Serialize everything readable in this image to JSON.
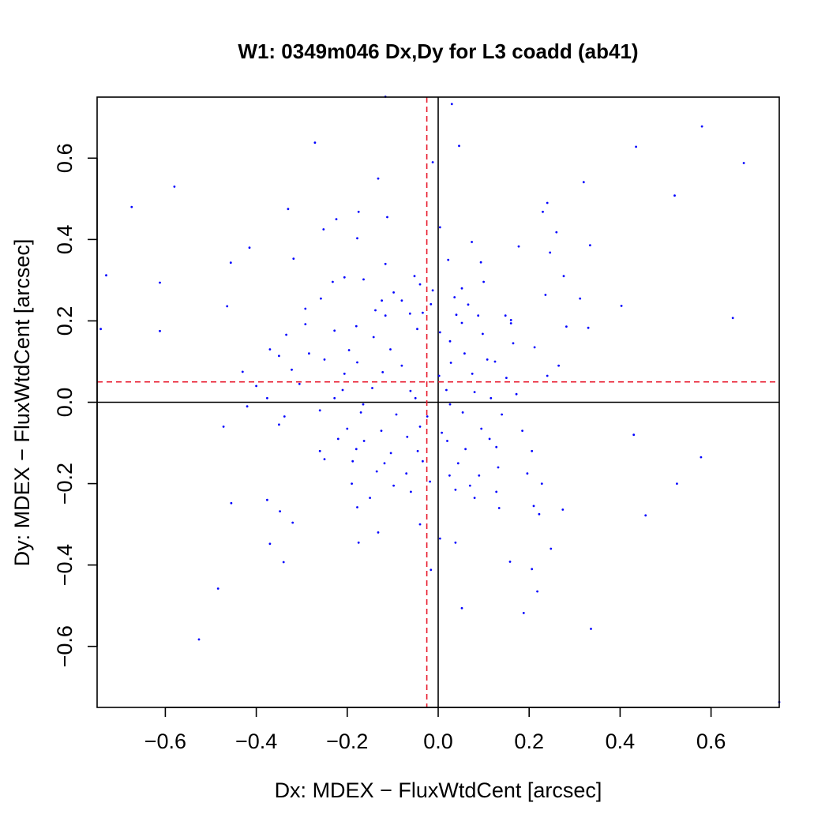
{
  "chart_data": {
    "type": "scatter",
    "title": "W1: 0349m046 Dx,Dy for L3 coadd (ab41)",
    "xlabel": "Dx: MDEX − FluxWtdCent [arcsec]",
    "ylabel": "Dy: MDEX − FluxWtdCent [arcsec]",
    "xlim": [
      -0.75,
      0.75
    ],
    "ylim": [
      -0.75,
      0.75
    ],
    "xticks": [
      -0.6,
      -0.4,
      -0.2,
      0.0,
      0.2,
      0.4,
      0.6
    ],
    "xtick_labels": [
      "−0.6",
      "−0.4",
      "−0.2",
      "0.0",
      "0.2",
      "0.4",
      "0.6"
    ],
    "yticks": [
      -0.6,
      -0.4,
      -0.2,
      0.0,
      0.2,
      0.4,
      0.6
    ],
    "ytick_labels": [
      "−0.6",
      "−0.4",
      "−0.2",
      "0.0",
      "0.2",
      "0.4",
      "0.6"
    ],
    "grid": false,
    "reference_lines": [
      {
        "orientation": "vertical",
        "value": 0.0,
        "color": "#000000",
        "style": "solid"
      },
      {
        "orientation": "horizontal",
        "value": 0.0,
        "color": "#000000",
        "style": "solid"
      },
      {
        "orientation": "vertical",
        "value": -0.025,
        "color": "#e8192c",
        "style": "dashed"
      },
      {
        "orientation": "horizontal",
        "value": 0.05,
        "color": "#e8192c",
        "style": "dashed"
      }
    ],
    "point_color": "#0000ff",
    "points": [
      [
        -0.116,
        0.751
      ],
      [
        0.03,
        0.733
      ],
      [
        0.58,
        0.678
      ],
      [
        -0.271,
        0.638
      ],
      [
        0.046,
        0.63
      ],
      [
        0.435,
        0.628
      ],
      [
        0.672,
        0.588
      ],
      [
        -0.012,
        0.59
      ],
      [
        -0.58,
        0.53
      ],
      [
        0.32,
        0.541
      ],
      [
        -0.132,
        0.55
      ],
      [
        0.52,
        0.508
      ],
      [
        -0.674,
        0.48
      ],
      [
        -0.33,
        0.475
      ],
      [
        -0.175,
        0.468
      ],
      [
        0.23,
        0.468
      ],
      [
        0.24,
        0.49
      ],
      [
        -0.112,
        0.455
      ],
      [
        -0.224,
        0.45
      ],
      [
        -0.252,
        0.425
      ],
      [
        0.26,
        0.418
      ],
      [
        0.004,
        0.43
      ],
      [
        -0.178,
        0.403
      ],
      [
        0.074,
        0.394
      ],
      [
        0.177,
        0.383
      ],
      [
        0.334,
        0.386
      ],
      [
        -0.415,
        0.38
      ],
      [
        0.246,
        0.368
      ],
      [
        -0.318,
        0.353
      ],
      [
        -0.456,
        0.343
      ],
      [
        0.022,
        0.35
      ],
      [
        0.094,
        0.344
      ],
      [
        -0.73,
        0.312
      ],
      [
        -0.116,
        0.34
      ],
      [
        -0.052,
        0.31
      ],
      [
        -0.612,
        0.294
      ],
      [
        -0.206,
        0.307
      ],
      [
        -0.164,
        0.302
      ],
      [
        -0.232,
        0.296
      ],
      [
        0.276,
        0.31
      ],
      [
        -0.04,
        0.29
      ],
      [
        -0.012,
        0.275
      ],
      [
        0.052,
        0.28
      ],
      [
        0.1,
        0.296
      ],
      [
        -0.098,
        0.27
      ],
      [
        0.036,
        0.258
      ],
      [
        0.236,
        0.264
      ],
      [
        0.312,
        0.255
      ],
      [
        -0.258,
        0.255
      ],
      [
        -0.08,
        0.25
      ],
      [
        -0.016,
        0.241
      ],
      [
        0.066,
        0.24
      ],
      [
        -0.124,
        0.25
      ],
      [
        -0.464,
        0.236
      ],
      [
        -0.292,
        0.23
      ],
      [
        0.403,
        0.237
      ],
      [
        -0.138,
        0.226
      ],
      [
        -0.116,
        0.213
      ],
      [
        -0.062,
        0.218
      ],
      [
        -0.034,
        0.22
      ],
      [
        0.04,
        0.215
      ],
      [
        0.088,
        0.213
      ],
      [
        0.148,
        0.213
      ],
      [
        -0.742,
        0.18
      ],
      [
        0.648,
        0.207
      ],
      [
        -0.292,
        0.192
      ],
      [
        -0.18,
        0.187
      ],
      [
        0.052,
        0.195
      ],
      [
        0.16,
        0.202
      ],
      [
        0.282,
        0.186
      ],
      [
        0.33,
        0.183
      ],
      [
        -0.612,
        0.175
      ],
      [
        0.16,
        0.194
      ],
      [
        -0.046,
        0.18
      ],
      [
        -0.334,
        0.166
      ],
      [
        -0.228,
        0.176
      ],
      [
        0.004,
        0.172
      ],
      [
        0.098,
        0.168
      ],
      [
        -0.142,
        0.16
      ],
      [
        0.026,
        0.15
      ],
      [
        0.165,
        0.145
      ],
      [
        0.212,
        0.135
      ],
      [
        -0.37,
        0.13
      ],
      [
        -0.284,
        0.12
      ],
      [
        -0.196,
        0.128
      ],
      [
        -0.105,
        0.13
      ],
      [
        0.058,
        0.12
      ],
      [
        -0.35,
        0.114
      ],
      [
        -0.25,
        0.105
      ],
      [
        -0.178,
        0.098
      ],
      [
        -0.08,
        0.09
      ],
      [
        0.028,
        0.097
      ],
      [
        0.108,
        0.105
      ],
      [
        0.125,
        0.1
      ],
      [
        0.265,
        0.09
      ],
      [
        -0.43,
        0.075
      ],
      [
        -0.322,
        0.08
      ],
      [
        -0.206,
        0.07
      ],
      [
        -0.122,
        0.074
      ],
      [
        0.002,
        0.065
      ],
      [
        0.075,
        0.07
      ],
      [
        0.15,
        0.06
      ],
      [
        0.24,
        0.065
      ],
      [
        -0.4,
        0.04
      ],
      [
        -0.305,
        0.045
      ],
      [
        -0.21,
        0.03
      ],
      [
        -0.145,
        0.035
      ],
      [
        -0.061,
        0.028
      ],
      [
        0.018,
        0.03
      ],
      [
        0.08,
        0.025
      ],
      [
        0.172,
        0.02
      ],
      [
        -0.42,
        -0.01
      ],
      [
        -0.376,
        0.01
      ],
      [
        -0.228,
        0.01
      ],
      [
        -0.165,
        -0.005
      ],
      [
        -0.05,
        0.01
      ],
      [
        0.026,
        -0.005
      ],
      [
        0.116,
        0.01
      ],
      [
        -0.338,
        -0.035
      ],
      [
        -0.26,
        -0.02
      ],
      [
        -0.17,
        -0.025
      ],
      [
        -0.092,
        -0.03
      ],
      [
        -0.024,
        -0.035
      ],
      [
        0.054,
        -0.025
      ],
      [
        0.14,
        -0.03
      ],
      [
        -0.472,
        -0.06
      ],
      [
        -0.35,
        -0.055
      ],
      [
        -0.2,
        -0.065
      ],
      [
        -0.125,
        -0.07
      ],
      [
        -0.04,
        -0.06
      ],
      [
        0.008,
        -0.075
      ],
      [
        0.095,
        -0.065
      ],
      [
        0.185,
        -0.07
      ],
      [
        -0.22,
        -0.09
      ],
      [
        -0.163,
        -0.095
      ],
      [
        -0.068,
        -0.085
      ],
      [
        0.02,
        -0.095
      ],
      [
        0.113,
        -0.09
      ],
      [
        0.43,
        -0.08
      ],
      [
        -0.26,
        -0.12
      ],
      [
        -0.18,
        -0.115
      ],
      [
        -0.104,
        -0.125
      ],
      [
        -0.045,
        -0.12
      ],
      [
        0.06,
        -0.115
      ],
      [
        0.128,
        -0.11
      ],
      [
        0.206,
        -0.12
      ],
      [
        -0.25,
        -0.14
      ],
      [
        -0.188,
        -0.145
      ],
      [
        -0.118,
        -0.15
      ],
      [
        -0.034,
        -0.145
      ],
      [
        0.044,
        -0.15
      ],
      [
        0.132,
        -0.16
      ],
      [
        0.578,
        -0.135
      ],
      [
        -0.135,
        -0.17
      ],
      [
        -0.07,
        -0.175
      ],
      [
        0.025,
        -0.18
      ],
      [
        0.09,
        -0.18
      ],
      [
        0.196,
        -0.175
      ],
      [
        -0.19,
        -0.2
      ],
      [
        -0.098,
        -0.205
      ],
      [
        -0.018,
        -0.195
      ],
      [
        0.07,
        -0.205
      ],
      [
        0.228,
        -0.2
      ],
      [
        0.525,
        -0.2
      ],
      [
        -0.06,
        -0.22
      ],
      [
        0.038,
        -0.215
      ],
      [
        0.128,
        -0.22
      ],
      [
        -0.15,
        -0.235
      ],
      [
        0.08,
        -0.235
      ],
      [
        -0.376,
        -0.24
      ],
      [
        -0.455,
        -0.248
      ],
      [
        -0.178,
        -0.258
      ],
      [
        0.134,
        -0.26
      ],
      [
        0.21,
        -0.255
      ],
      [
        0.274,
        -0.264
      ],
      [
        -0.348,
        -0.268
      ],
      [
        0.222,
        -0.275
      ],
      [
        0.456,
        -0.278
      ],
      [
        -0.32,
        -0.296
      ],
      [
        -0.04,
        -0.3
      ],
      [
        -0.132,
        -0.32
      ],
      [
        0.004,
        -0.335
      ],
      [
        0.038,
        -0.345
      ],
      [
        -0.37,
        -0.348
      ],
      [
        -0.175,
        -0.345
      ],
      [
        0.248,
        -0.36
      ],
      [
        -0.34,
        -0.393
      ],
      [
        0.158,
        -0.392
      ],
      [
        -0.016,
        -0.412
      ],
      [
        0.206,
        -0.41
      ],
      [
        0.218,
        -0.465
      ],
      [
        -0.484,
        -0.458
      ],
      [
        0.052,
        -0.506
      ],
      [
        0.188,
        -0.518
      ],
      [
        -0.526,
        -0.583
      ],
      [
        0.336,
        -0.557
      ],
      [
        0.75,
        -0.737
      ]
    ]
  }
}
